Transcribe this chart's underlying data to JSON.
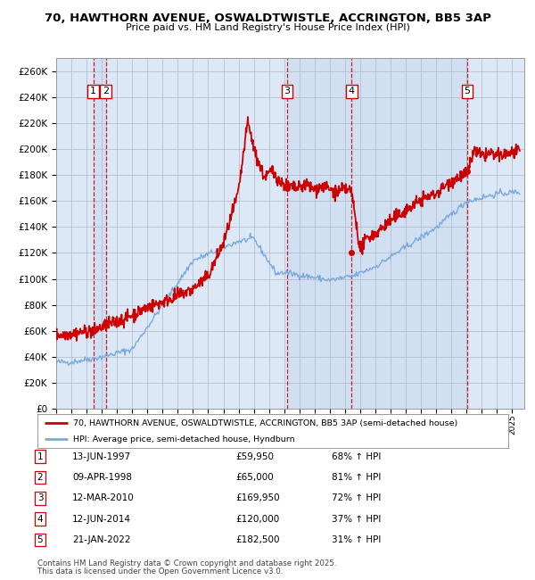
{
  "title1": "70, HAWTHORN AVENUE, OSWALDTWISTLE, ACCRINGTON, BB5 3AP",
  "title2": "Price paid vs. HM Land Registry's House Price Index (HPI)",
  "ylim": [
    0,
    270000
  ],
  "bg_color": "#ffffff",
  "plot_bg_color": "#dce8f5",
  "grid_color": "#b0b8c8",
  "hpi_line_color": "#7aaadd",
  "price_line_color": "#cc0000",
  "sale_marker_color": "#cc0000",
  "vline_color": "#cc0000",
  "sales": [
    {
      "label": 1,
      "date_num": 1997.45,
      "price": 59950,
      "date_str": "13-JUN-1997",
      "pct": "68%",
      "dir": "↑"
    },
    {
      "label": 2,
      "date_num": 1998.27,
      "price": 65000,
      "date_str": "09-APR-1998",
      "pct": "81%",
      "dir": "↑"
    },
    {
      "label": 3,
      "date_num": 2010.19,
      "price": 169950,
      "date_str": "12-MAR-2010",
      "pct": "72%",
      "dir": "↑"
    },
    {
      "label": 4,
      "date_num": 2014.44,
      "price": 120000,
      "date_str": "12-JUN-2014",
      "pct": "37%",
      "dir": "↑"
    },
    {
      "label": 5,
      "date_num": 2022.05,
      "price": 182500,
      "date_str": "21-JAN-2022",
      "pct": "31%",
      "dir": "↑"
    }
  ],
  "legend1": "70, HAWTHORN AVENUE, OSWALDTWISTLE, ACCRINGTON, BB5 3AP (semi-detached house)",
  "legend2": "HPI: Average price, semi-detached house, Hyndburn",
  "footnote1": "Contains HM Land Registry data © Crown copyright and database right 2025.",
  "footnote2": "This data is licensed under the Open Government Licence v3.0.",
  "xlim_start": 1995.0,
  "xlim_end": 2025.8
}
